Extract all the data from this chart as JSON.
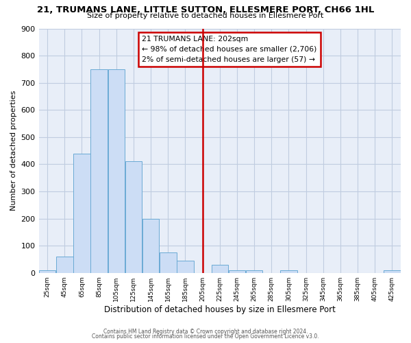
{
  "title": "21, TRUMANS LANE, LITTLE SUTTON, ELLESMERE PORT, CH66 1HL",
  "subtitle": "Size of property relative to detached houses in Ellesmere Port",
  "xlabel": "Distribution of detached houses by size in Ellesmere Port",
  "ylabel": "Number of detached properties",
  "bar_centers": [
    25,
    45,
    65,
    85,
    105,
    125,
    145,
    165,
    185,
    205,
    225,
    245,
    265,
    285,
    305,
    325,
    345,
    365,
    385,
    405,
    425
  ],
  "bar_values": [
    10,
    60,
    440,
    750,
    750,
    410,
    200,
    75,
    45,
    0,
    30,
    10,
    10,
    0,
    10,
    0,
    0,
    0,
    0,
    0,
    10
  ],
  "bar_width": 19.5,
  "bar_color": "#ccddf5",
  "bar_edge_color": "#6aaad4",
  "vline_x": 205,
  "vline_color": "#cc0000",
  "annotation_title": "21 TRUMANS LANE: 202sqm",
  "annotation_line1": "← 98% of detached houses are smaller (2,706)",
  "annotation_line2": "2% of semi-detached houses are larger (57) →",
  "annotation_box_color": "#cc0000",
  "ylim": [
    0,
    900
  ],
  "yticks": [
    0,
    100,
    200,
    300,
    400,
    500,
    600,
    700,
    800,
    900
  ],
  "tick_labels": [
    "25sqm",
    "45sqm",
    "65sqm",
    "85sqm",
    "105sqm",
    "125sqm",
    "145sqm",
    "165sqm",
    "185sqm",
    "205sqm",
    "225sqm",
    "245sqm",
    "265sqm",
    "285sqm",
    "305sqm",
    "325sqm",
    "345sqm",
    "365sqm",
    "385sqm",
    "405sqm",
    "425sqm"
  ],
  "footer1": "Contains HM Land Registry data © Crown copyright and database right 2024.",
  "footer2": "Contains public sector information licensed under the Open Government Licence v3.0.",
  "background_color": "#ffffff",
  "plot_bg_color": "#e8eef8",
  "grid_color": "#c0cce0"
}
